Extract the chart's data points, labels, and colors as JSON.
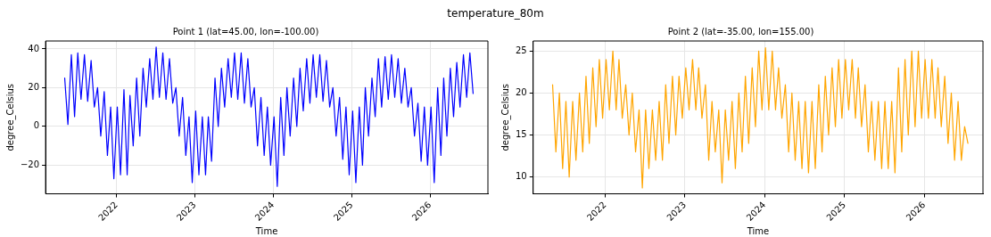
{
  "chart_data": [
    {
      "type": "line",
      "title": "Point 1 (lat=45.00, lon=-100.00)",
      "xlabel": "Time",
      "ylabel": "degree_Celsius",
      "annotations": [
        "temperature_80m"
      ],
      "x": [
        "2021-05-05",
        "2021-05-20",
        "2021-06-05",
        "2021-06-20",
        "2021-07-05",
        "2021-07-20",
        "2021-08-05",
        "2021-08-20",
        "2021-09-05",
        "2021-09-20",
        "2021-10-05",
        "2021-10-20",
        "2021-11-05",
        "2021-11-20",
        "2021-12-05",
        "2021-12-20",
        "2022-01-05",
        "2022-01-20",
        "2022-02-05",
        "2022-02-20",
        "2022-03-05",
        "2022-03-20",
        "2022-04-05",
        "2022-04-20",
        "2022-05-05",
        "2022-05-20",
        "2022-06-05",
        "2022-06-20",
        "2022-07-05",
        "2022-07-20",
        "2022-08-05",
        "2022-08-20",
        "2022-09-05",
        "2022-09-20",
        "2022-10-05",
        "2022-10-20",
        "2022-11-05",
        "2022-11-20",
        "2022-12-05",
        "2022-12-20",
        "2023-01-05",
        "2023-01-20",
        "2023-02-05",
        "2023-02-20",
        "2023-03-05",
        "2023-03-20",
        "2023-04-05",
        "2023-04-20",
        "2023-05-05",
        "2023-05-20",
        "2023-06-05",
        "2023-06-20",
        "2023-07-05",
        "2023-07-20",
        "2023-08-05",
        "2023-08-20",
        "2023-09-05",
        "2023-09-20",
        "2023-10-05",
        "2023-10-20",
        "2023-11-05",
        "2023-11-20",
        "2023-12-05",
        "2023-12-20",
        "2024-01-05",
        "2024-01-20",
        "2024-02-05",
        "2024-02-20",
        "2024-03-05",
        "2024-03-20",
        "2024-04-05",
        "2024-04-20",
        "2024-05-05",
        "2024-05-20",
        "2024-06-05",
        "2024-06-20",
        "2024-07-05",
        "2024-07-20",
        "2024-08-05",
        "2024-08-20",
        "2024-09-05",
        "2024-09-20",
        "2024-10-05",
        "2024-10-20",
        "2024-11-05",
        "2024-11-20",
        "2024-12-05",
        "2024-12-20",
        "2025-01-05",
        "2025-01-20",
        "2025-02-05",
        "2025-02-20",
        "2025-03-05",
        "2025-03-20",
        "2025-04-05",
        "2025-04-20",
        "2025-05-05",
        "2025-05-20",
        "2025-06-05",
        "2025-06-20",
        "2025-07-05",
        "2025-07-20",
        "2025-08-05",
        "2025-08-20",
        "2025-09-05",
        "2025-09-20",
        "2025-10-05",
        "2025-10-20",
        "2025-11-05",
        "2025-11-20",
        "2025-12-05",
        "2025-12-20",
        "2026-01-05",
        "2026-01-20",
        "2026-02-05",
        "2026-02-20",
        "2026-03-05",
        "2026-03-20",
        "2026-04-05",
        "2026-04-20",
        "2026-05-05",
        "2026-05-20",
        "2026-06-05",
        "2026-06-20",
        "2026-07-05",
        "2026-07-20"
      ],
      "series": [
        {
          "color": "#0000ff",
          "values": [
            25,
            1,
            37,
            5,
            38,
            14,
            37,
            13,
            34,
            10,
            20,
            -5,
            18,
            -15,
            10,
            -27,
            10,
            -25,
            19,
            -25,
            16,
            -10,
            25,
            -5,
            30,
            10,
            35,
            14,
            41,
            15,
            38,
            14,
            35,
            12,
            20,
            -5,
            15,
            -15,
            5,
            -29,
            8,
            -25,
            5,
            -25,
            5,
            -18,
            25,
            0,
            30,
            10,
            35,
            15,
            38,
            14,
            38,
            12,
            35,
            10,
            20,
            -10,
            15,
            -15,
            10,
            -20,
            5,
            -31,
            15,
            -15,
            20,
            -5,
            25,
            0,
            30,
            8,
            35,
            12,
            37,
            15,
            37,
            13,
            34,
            10,
            20,
            -5,
            15,
            -17,
            10,
            -25,
            8,
            -29,
            10,
            -20,
            20,
            -5,
            25,
            5,
            35,
            10,
            36,
            14,
            37,
            15,
            35,
            12,
            30,
            10,
            20,
            -5,
            12,
            -18,
            10,
            -20,
            10,
            -29,
            20,
            -15,
            25,
            -5,
            30,
            5,
            33,
            10,
            37,
            15,
            38,
            17
          ]
        }
      ],
      "xlim": [
        "2021-02-05",
        "2026-09-27"
      ],
      "xticks": [
        {
          "value": "2022-01-01",
          "label": "2022"
        },
        {
          "value": "2023-01-01",
          "label": "2023"
        },
        {
          "value": "2024-01-01",
          "label": "2024"
        },
        {
          "value": "2025-01-01",
          "label": "2025"
        },
        {
          "value": "2026-01-01",
          "label": "2026"
        }
      ],
      "ylim": [
        -34.8,
        44.1
      ],
      "yticks": [
        -20,
        0,
        20,
        40
      ],
      "grid": true,
      "line_style": "solid"
    },
    {
      "type": "line",
      "title": "Point 2 (lat=-35.00, lon=155.00)",
      "xlabel": "Time",
      "ylabel": "degree_Celsius",
      "x": [
        "2021-05-05",
        "2021-05-20",
        "2021-06-05",
        "2021-06-20",
        "2021-07-05",
        "2021-07-20",
        "2021-08-05",
        "2021-08-20",
        "2021-09-05",
        "2021-09-20",
        "2021-10-05",
        "2021-10-20",
        "2021-11-05",
        "2021-11-20",
        "2021-12-05",
        "2021-12-20",
        "2022-01-05",
        "2022-01-20",
        "2022-02-05",
        "2022-02-20",
        "2022-03-05",
        "2022-03-20",
        "2022-04-05",
        "2022-04-20",
        "2022-05-05",
        "2022-05-20",
        "2022-06-05",
        "2022-06-20",
        "2022-07-05",
        "2022-07-20",
        "2022-08-05",
        "2022-08-20",
        "2022-09-05",
        "2022-09-20",
        "2022-10-05",
        "2022-10-20",
        "2022-11-05",
        "2022-11-20",
        "2022-12-05",
        "2022-12-20",
        "2023-01-05",
        "2023-01-20",
        "2023-02-05",
        "2023-02-20",
        "2023-03-05",
        "2023-03-20",
        "2023-04-05",
        "2023-04-20",
        "2023-05-05",
        "2023-05-20",
        "2023-06-05",
        "2023-06-20",
        "2023-07-05",
        "2023-07-20",
        "2023-08-05",
        "2023-08-20",
        "2023-09-05",
        "2023-09-20",
        "2023-10-05",
        "2023-10-20",
        "2023-11-05",
        "2023-11-20",
        "2023-12-05",
        "2023-12-20",
        "2024-01-05",
        "2024-01-20",
        "2024-02-05",
        "2024-02-20",
        "2024-03-05",
        "2024-03-20",
        "2024-04-05",
        "2024-04-20",
        "2024-05-05",
        "2024-05-20",
        "2024-06-05",
        "2024-06-20",
        "2024-07-05",
        "2024-07-20",
        "2024-08-05",
        "2024-08-20",
        "2024-09-05",
        "2024-09-20",
        "2024-10-05",
        "2024-10-20",
        "2024-11-05",
        "2024-11-20",
        "2024-12-05",
        "2024-12-20",
        "2025-01-05",
        "2025-01-20",
        "2025-02-05",
        "2025-02-20",
        "2025-03-05",
        "2025-03-20",
        "2025-04-05",
        "2025-04-20",
        "2025-05-05",
        "2025-05-20",
        "2025-06-05",
        "2025-06-20",
        "2025-07-05",
        "2025-07-20",
        "2025-08-05",
        "2025-08-20",
        "2025-09-05",
        "2025-09-20",
        "2025-10-05",
        "2025-10-20",
        "2025-11-05",
        "2025-11-20",
        "2025-12-05",
        "2025-12-20",
        "2026-01-05",
        "2026-01-20",
        "2026-02-05",
        "2026-02-20",
        "2026-03-05",
        "2026-03-20",
        "2026-04-05",
        "2026-04-20",
        "2026-05-05",
        "2026-05-20",
        "2026-06-05",
        "2026-06-20",
        "2026-07-05",
        "2026-07-20"
      ],
      "series": [
        {
          "color": "#ffa500",
          "values": [
            21,
            13,
            20,
            11,
            19,
            10,
            19,
            12,
            20,
            13,
            22,
            14,
            23,
            16,
            24,
            17,
            24,
            18,
            25,
            18,
            24,
            17,
            21,
            15,
            20,
            13,
            18,
            8.7,
            18,
            11,
            18,
            12,
            19,
            12,
            21,
            14,
            22,
            15,
            22,
            17,
            23,
            18,
            24,
            18,
            23,
            17,
            21,
            12,
            19,
            13,
            18,
            9.3,
            18,
            12,
            19,
            11,
            20,
            13,
            22,
            14,
            23,
            16,
            25,
            18,
            25.4,
            18,
            25,
            18,
            23,
            17,
            21,
            13,
            20,
            12,
            19,
            11,
            19,
            10.5,
            19,
            11,
            21,
            13,
            22,
            15,
            23,
            16,
            24,
            17,
            24,
            18,
            24,
            17,
            23,
            16,
            21,
            13,
            19,
            12,
            19,
            11,
            19,
            11,
            19,
            10.5,
            23,
            13,
            24,
            15,
            25,
            16,
            25,
            17,
            24,
            17,
            24,
            17,
            23,
            16,
            22,
            14,
            20,
            12,
            19,
            12,
            16,
            14
          ]
        }
      ],
      "xlim": [
        "2021-02-05",
        "2026-09-27"
      ],
      "xticks": [
        {
          "value": "2022-01-01",
          "label": "2022"
        },
        {
          "value": "2023-01-01",
          "label": "2023"
        },
        {
          "value": "2024-01-01",
          "label": "2024"
        },
        {
          "value": "2025-01-01",
          "label": "2025"
        },
        {
          "value": "2026-01-01",
          "label": "2026"
        }
      ],
      "ylim": [
        8.0,
        26.2
      ],
      "yticks": [
        10,
        15,
        20,
        25
      ],
      "grid": true,
      "line_style": "solid"
    }
  ]
}
